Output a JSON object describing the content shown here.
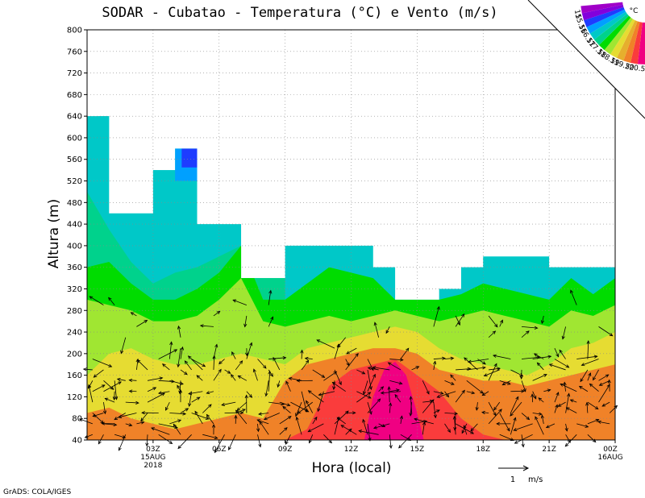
{
  "chart_data": {
    "type": "heatmap",
    "title": "SODAR - Cubatao - Temperatura (°C) e Vento (m/s)",
    "xlabel": "Hora (local)",
    "ylabel": "Altura (m)",
    "ylim": [
      40,
      800
    ],
    "xlim": [
      0,
      24
    ],
    "y_ticks": [
      40,
      80,
      120,
      160,
      200,
      240,
      280,
      320,
      360,
      400,
      440,
      480,
      520,
      560,
      600,
      640,
      680,
      720,
      760,
      800
    ],
    "x_ticks": [
      {
        "x": 3,
        "label": "03Z",
        "sub1": "15AUG",
        "sub2": "2018"
      },
      {
        "x": 6,
        "label": "06Z",
        "sub1": "",
        "sub2": ""
      },
      {
        "x": 9,
        "label": "09Z",
        "sub1": "",
        "sub2": ""
      },
      {
        "x": 12,
        "label": "12Z",
        "sub1": "",
        "sub2": ""
      },
      {
        "x": 15,
        "label": "15Z",
        "sub1": "",
        "sub2": ""
      },
      {
        "x": 18,
        "label": "18Z",
        "sub1": "",
        "sub2": ""
      },
      {
        "x": 21,
        "label": "21Z",
        "sub1": "",
        "sub2": ""
      },
      {
        "x": 24,
        "label": "00Z",
        "sub1": "16AUG",
        "sub2": ""
      }
    ],
    "grid": true,
    "colorbar": {
      "unit": "°C",
      "levels": [
        "15",
        "15.5",
        "16",
        "16.5",
        "17",
        "17.5",
        "18",
        "18.5",
        "19",
        "19.5",
        "20",
        "20.5"
      ],
      "colors": [
        "#a000c8",
        "#8200dc",
        "#1e3cff",
        "#00a0ff",
        "#00c8c8",
        "#00d28c",
        "#00dc00",
        "#a0e632",
        "#e6dc32",
        "#e6af2d",
        "#f08228",
        "#fa3c3c",
        "#f00082"
      ]
    },
    "top_height_by_hour": [
      {
        "x_start": 0,
        "x_end": 1,
        "top": 640
      },
      {
        "x_start": 1,
        "x_end": 3,
        "top": 460
      },
      {
        "x_start": 3,
        "x_end": 4,
        "top": 540
      },
      {
        "x_start": 4,
        "x_end": 5,
        "top": 580
      },
      {
        "x_start": 5,
        "x_end": 7,
        "top": 440
      },
      {
        "x_start": 7,
        "x_end": 9,
        "top": 340
      },
      {
        "x_start": 9,
        "x_end": 13,
        "top": 400
      },
      {
        "x_start": 13,
        "x_end": 14,
        "top": 360
      },
      {
        "x_start": 14,
        "x_end": 16,
        "top": 300
      },
      {
        "x_start": 16,
        "x_end": 17,
        "top": 320
      },
      {
        "x_start": 17,
        "x_end": 18,
        "top": 360
      },
      {
        "x_start": 18,
        "x_end": 21,
        "top": 380
      },
      {
        "x_start": 21,
        "x_end": 24,
        "top": 360
      }
    ],
    "temperature_layers": [
      {
        "name": "17.5-18",
        "color": "#00d28c",
        "boundary": [
          [
            0,
            500
          ],
          [
            1,
            430
          ],
          [
            2,
            370
          ],
          [
            3,
            330
          ],
          [
            4,
            350
          ],
          [
            5,
            360
          ],
          [
            6,
            380
          ],
          [
            7,
            400
          ],
          [
            8,
            380
          ],
          [
            9,
            340
          ]
        ]
      },
      {
        "name": "18-18.5",
        "color": "#00dc00",
        "boundary": [
          [
            0,
            360
          ],
          [
            1,
            370
          ],
          [
            2,
            330
          ],
          [
            3,
            300
          ],
          [
            4,
            300
          ],
          [
            5,
            320
          ],
          [
            6,
            350
          ],
          [
            7,
            400
          ],
          [
            8,
            300
          ],
          [
            9,
            300
          ],
          [
            10,
            330
          ],
          [
            11,
            360
          ],
          [
            12,
            350
          ],
          [
            13,
            340
          ],
          [
            14,
            300
          ],
          [
            15,
            300
          ],
          [
            16,
            300
          ],
          [
            17,
            310
          ],
          [
            18,
            330
          ],
          [
            19,
            320
          ],
          [
            20,
            310
          ],
          [
            21,
            300
          ],
          [
            22,
            340
          ],
          [
            23,
            310
          ],
          [
            24,
            340
          ]
        ]
      },
      {
        "name": "18.5-19",
        "color": "#a0e632",
        "boundary": [
          [
            0,
            300
          ],
          [
            1,
            290
          ],
          [
            2,
            280
          ],
          [
            3,
            260
          ],
          [
            4,
            260
          ],
          [
            5,
            270
          ],
          [
            6,
            300
          ],
          [
            7,
            340
          ],
          [
            8,
            260
          ],
          [
            9,
            250
          ],
          [
            10,
            260
          ],
          [
            11,
            270
          ],
          [
            12,
            260
          ],
          [
            13,
            270
          ],
          [
            14,
            280
          ],
          [
            15,
            270
          ],
          [
            16,
            260
          ],
          [
            17,
            270
          ],
          [
            18,
            280
          ],
          [
            19,
            270
          ],
          [
            20,
            260
          ],
          [
            21,
            250
          ],
          [
            22,
            280
          ],
          [
            23,
            270
          ],
          [
            24,
            290
          ]
        ]
      },
      {
        "name": "19-19.5",
        "color": "#e6dc32",
        "boundary": [
          [
            0,
            160
          ],
          [
            1,
            200
          ],
          [
            2,
            210
          ],
          [
            3,
            190
          ],
          [
            4,
            180
          ],
          [
            5,
            180
          ],
          [
            6,
            190
          ],
          [
            7,
            200
          ],
          [
            8,
            190
          ],
          [
            9,
            180
          ],
          [
            10,
            210
          ],
          [
            11,
            220
          ],
          [
            12,
            230
          ],
          [
            13,
            240
          ],
          [
            14,
            250
          ],
          [
            15,
            240
          ],
          [
            16,
            210
          ],
          [
            17,
            190
          ],
          [
            18,
            180
          ],
          [
            19,
            170
          ],
          [
            20,
            160
          ],
          [
            21,
            180
          ],
          [
            22,
            210
          ],
          [
            23,
            220
          ],
          [
            24,
            240
          ]
        ]
      },
      {
        "name": "19.5-20",
        "color": "#f08228",
        "boundary": [
          [
            0,
            90
          ],
          [
            1,
            100
          ],
          [
            2,
            80
          ],
          [
            3,
            70
          ],
          [
            4,
            60
          ],
          [
            5,
            70
          ],
          [
            6,
            80
          ],
          [
            7,
            90
          ],
          [
            8,
            80
          ],
          [
            9,
            150
          ],
          [
            10,
            180
          ],
          [
            11,
            190
          ],
          [
            12,
            200
          ],
          [
            13,
            210
          ],
          [
            14,
            210
          ],
          [
            15,
            200
          ],
          [
            16,
            170
          ],
          [
            17,
            160
          ],
          [
            18,
            150
          ],
          [
            19,
            150
          ],
          [
            20,
            140
          ],
          [
            21,
            150
          ],
          [
            22,
            160
          ],
          [
            23,
            170
          ],
          [
            24,
            180
          ]
        ]
      },
      {
        "name": "20-20.5",
        "color": "#fa3c3c",
        "boundary": [
          [
            9,
            40
          ],
          [
            10,
            60
          ],
          [
            11,
            140
          ],
          [
            12,
            170
          ],
          [
            13,
            180
          ],
          [
            14,
            190
          ],
          [
            15,
            160
          ],
          [
            16,
            130
          ],
          [
            17,
            80
          ],
          [
            18,
            50
          ],
          [
            19,
            40
          ]
        ]
      },
      {
        "name": "20.5+",
        "color": "#f00082",
        "boundary": [
          [
            12.6,
            40
          ],
          [
            13,
            120
          ],
          [
            13.5,
            170
          ],
          [
            14,
            185
          ],
          [
            14.5,
            160
          ],
          [
            15,
            90
          ],
          [
            15.3,
            40
          ]
        ]
      }
    ],
    "extra_patches": [
      {
        "color": "#00c8c8",
        "x": [
          3,
          5
        ],
        "y": [
          440,
          540
        ]
      },
      {
        "color": "#00a0ff",
        "x": [
          4,
          5
        ],
        "y": [
          520,
          580
        ]
      },
      {
        "color": "#1e3cff",
        "x": [
          4.3,
          5
        ],
        "y": [
          545,
          580
        ]
      },
      {
        "color": "#00c8c8",
        "x": [
          0.5,
          1
        ],
        "y": [
          560,
          640
        ]
      }
    ],
    "wind_vectors_note": "1 m/s",
    "wind_legend_label": "1",
    "wind_legend_unit": "m/s"
  },
  "credit": "GrADS: COLA/IGES"
}
